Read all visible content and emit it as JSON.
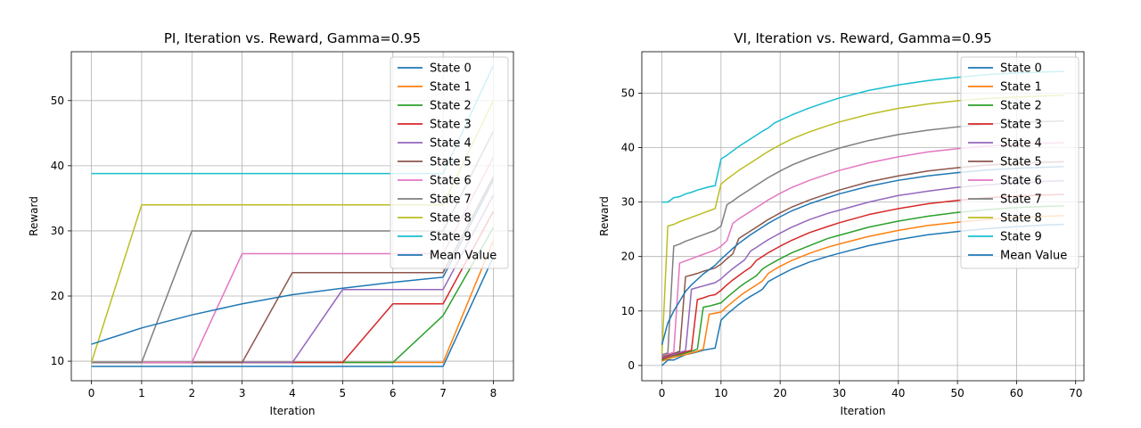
{
  "colors": {
    "State 0": "#1f77b4",
    "State 1": "#ff7f0e",
    "State 2": "#2ca02c",
    "State 3": "#d62728",
    "State 4": "#9467bd",
    "State 5": "#8c564b",
    "State 6": "#e377c2",
    "State 7": "#7f7f7f",
    "State 8": "#bcbd22",
    "State 9": "#17becf",
    "Mean Value": "#1f77b4"
  },
  "chart_data": [
    {
      "type": "line",
      "title": "PI, Iteration vs. Reward, Gamma=0.95",
      "xlabel": "Iteration",
      "ylabel": "Reward",
      "xlim": [
        -0.4,
        8.4
      ],
      "ylim": [
        7.0,
        57.5
      ],
      "xticks": [
        0,
        1,
        2,
        3,
        4,
        5,
        6,
        7,
        8
      ],
      "yticks": [
        10,
        20,
        30,
        40,
        50
      ],
      "grid": true,
      "legend_position": "top-right",
      "x": [
        0,
        1,
        2,
        3,
        4,
        5,
        6,
        7,
        8
      ],
      "series": [
        {
          "name": "State 0",
          "values": [
            9.2,
            9.2,
            9.2,
            9.2,
            9.2,
            9.2,
            9.2,
            9.2,
            26.0
          ]
        },
        {
          "name": "State 1",
          "values": [
            9.8,
            9.8,
            9.8,
            9.8,
            9.8,
            9.8,
            9.8,
            9.8,
            28.5
          ]
        },
        {
          "name": "State 2",
          "values": [
            9.8,
            9.8,
            9.8,
            9.8,
            9.8,
            9.8,
            9.8,
            17.0,
            30.5
          ]
        },
        {
          "name": "State 3",
          "values": [
            9.8,
            9.8,
            9.8,
            9.8,
            9.8,
            9.8,
            18.8,
            18.8,
            33.0
          ]
        },
        {
          "name": "State 4",
          "values": [
            9.8,
            9.8,
            9.8,
            9.8,
            9.8,
            21.0,
            21.0,
            21.0,
            35.5
          ]
        },
        {
          "name": "State 5",
          "values": [
            9.8,
            9.8,
            9.8,
            9.8,
            23.6,
            23.6,
            23.6,
            23.6,
            38.3
          ]
        },
        {
          "name": "State 6",
          "values": [
            9.8,
            9.8,
            9.8,
            26.5,
            26.5,
            26.5,
            26.5,
            26.5,
            41.3
          ]
        },
        {
          "name": "State 7",
          "values": [
            9.8,
            9.8,
            30.0,
            30.0,
            30.0,
            30.0,
            30.0,
            30.0,
            45.3
          ]
        },
        {
          "name": "State 8",
          "values": [
            9.8,
            34.0,
            34.0,
            34.0,
            34.0,
            34.0,
            34.0,
            34.0,
            50.0
          ]
        },
        {
          "name": "State 9",
          "values": [
            38.8,
            38.8,
            38.8,
            38.8,
            38.8,
            38.8,
            38.8,
            38.8,
            55.4
          ]
        },
        {
          "name": "Mean Value",
          "values": [
            12.6,
            15.1,
            17.1,
            18.8,
            20.2,
            21.2,
            22.1,
            22.9,
            37.8
          ]
        }
      ]
    },
    {
      "type": "line",
      "title": "VI, Iteration vs. Reward, Gamma=0.95",
      "xlabel": "Iteration",
      "ylabel": "Reward",
      "xlim": [
        -3.4,
        71.4
      ],
      "ylim": [
        -2.8,
        57.6
      ],
      "xticks": [
        0,
        10,
        20,
        30,
        40,
        50,
        60,
        70
      ],
      "yticks": [
        0,
        10,
        20,
        30,
        40,
        50
      ],
      "grid": true,
      "legend_position": "top-right",
      "x": [
        0,
        1,
        2,
        3,
        4,
        5,
        6,
        7,
        8,
        9,
        10,
        11,
        12,
        13,
        14,
        15,
        16,
        17,
        18,
        19,
        20,
        22,
        25,
        28,
        30,
        35,
        40,
        45,
        50,
        55,
        60,
        65,
        68
      ],
      "series": [
        {
          "name": "State 0",
          "values": [
            0.0,
            1.0,
            1.0,
            1.5,
            2.0,
            2.2,
            2.5,
            2.8,
            3.0,
            3.2,
            8.3,
            9.4,
            10.3,
            11.2,
            12.0,
            12.7,
            13.3,
            14.0,
            15.4,
            16.0,
            16.6,
            17.7,
            19.0,
            20.0,
            20.6,
            22.0,
            23.1,
            24.0,
            24.6,
            25.1,
            25.5,
            25.8,
            25.9
          ]
        },
        {
          "name": "State 1",
          "values": [
            0.8,
            1.2,
            1.5,
            1.8,
            2.0,
            2.3,
            2.6,
            3.0,
            9.4,
            9.6,
            9.8,
            10.8,
            11.7,
            12.6,
            13.4,
            14.1,
            14.8,
            15.5,
            16.9,
            17.6,
            18.2,
            19.3,
            20.6,
            21.7,
            22.3,
            23.7,
            24.8,
            25.7,
            26.3,
            26.8,
            27.2,
            27.4,
            27.5
          ]
        },
        {
          "name": "State 2",
          "values": [
            1.0,
            1.5,
            1.8,
            2.0,
            2.3,
            2.6,
            3.0,
            10.7,
            10.9,
            11.2,
            11.5,
            12.5,
            13.4,
            14.3,
            15.1,
            15.8,
            16.5,
            17.7,
            18.4,
            19.0,
            19.6,
            20.7,
            22.0,
            23.3,
            23.9,
            25.4,
            26.5,
            27.4,
            28.1,
            28.6,
            29.0,
            29.2,
            29.3
          ]
        },
        {
          "name": "State 3",
          "values": [
            1.2,
            1.6,
            1.9,
            2.2,
            2.5,
            2.8,
            12.1,
            12.4,
            12.8,
            13.0,
            13.8,
            14.8,
            15.7,
            16.5,
            17.3,
            18.0,
            19.3,
            20.0,
            20.7,
            21.3,
            21.9,
            23.0,
            24.4,
            25.5,
            26.2,
            27.7,
            28.8,
            29.7,
            30.3,
            30.8,
            31.1,
            31.3,
            31.4
          ]
        },
        {
          "name": "State 4",
          "values": [
            1.4,
            1.8,
            2.0,
            2.4,
            2.7,
            14.0,
            14.3,
            14.6,
            14.9,
            15.2,
            15.9,
            16.9,
            17.8,
            18.6,
            19.4,
            21.0,
            21.7,
            22.4,
            23.1,
            23.7,
            24.3,
            25.4,
            26.8,
            27.9,
            28.5,
            30.0,
            31.2,
            32.0,
            32.7,
            33.2,
            33.5,
            33.8,
            33.9
          ]
        },
        {
          "name": "State 5",
          "values": [
            1.6,
            1.9,
            2.2,
            2.6,
            16.3,
            16.6,
            16.9,
            17.3,
            17.6,
            17.9,
            18.6,
            19.6,
            20.5,
            23.3,
            24.0,
            24.7,
            25.4,
            26.1,
            26.8,
            27.4,
            28.0,
            29.1,
            30.4,
            31.5,
            32.2,
            33.7,
            34.8,
            35.7,
            36.3,
            36.8,
            37.1,
            37.3,
            37.4
          ]
        },
        {
          "name": "State 6",
          "values": [
            1.8,
            2.1,
            2.4,
            18.8,
            19.2,
            19.6,
            20.0,
            20.4,
            20.8,
            21.2,
            21.9,
            22.9,
            26.1,
            26.9,
            27.6,
            28.3,
            29.0,
            29.7,
            30.4,
            31.0,
            31.6,
            32.7,
            34.0,
            35.1,
            35.8,
            37.2,
            38.3,
            39.2,
            39.8,
            40.3,
            40.6,
            40.8,
            40.9
          ]
        },
        {
          "name": "State 7",
          "values": [
            2.0,
            2.3,
            21.9,
            22.3,
            22.8,
            23.2,
            23.6,
            24.0,
            24.4,
            24.8,
            25.6,
            29.5,
            30.2,
            31.0,
            31.7,
            32.4,
            33.1,
            33.8,
            34.5,
            35.1,
            35.7,
            36.8,
            38.1,
            39.2,
            39.9,
            41.3,
            42.4,
            43.2,
            43.8,
            44.3,
            44.6,
            44.8,
            44.9
          ]
        },
        {
          "name": "State 8",
          "values": [
            2.2,
            25.6,
            25.9,
            26.4,
            26.8,
            27.2,
            27.6,
            28.0,
            28.4,
            28.8,
            33.3,
            34.2,
            35.0,
            35.8,
            36.5,
            37.2,
            37.9,
            38.6,
            39.3,
            39.9,
            40.5,
            41.6,
            42.9,
            44.0,
            44.7,
            46.1,
            47.2,
            48.0,
            48.6,
            49.0,
            49.3,
            49.5,
            49.6
          ]
        },
        {
          "name": "State 9",
          "values": [
            30.0,
            30.0,
            30.8,
            31.0,
            31.5,
            31.8,
            32.2,
            32.5,
            32.8,
            33.0,
            37.9,
            38.6,
            39.4,
            40.2,
            40.9,
            41.6,
            42.3,
            43.0,
            43.6,
            44.5,
            45.0,
            46.0,
            47.3,
            48.4,
            49.1,
            50.5,
            51.5,
            52.3,
            52.9,
            53.4,
            53.7,
            53.9,
            54.0
          ]
        },
        {
          "name": "Mean Value",
          "values": [
            3.8,
            7.8,
            10.0,
            11.8,
            13.6,
            14.8,
            15.8,
            16.8,
            17.6,
            18.4,
            19.5,
            20.5,
            21.5,
            22.4,
            23.2,
            24.0,
            24.7,
            25.4,
            26.1,
            26.7,
            27.3,
            28.4,
            29.7,
            30.8,
            31.5,
            32.9,
            34.0,
            34.8,
            35.4,
            35.9,
            36.2,
            36.4,
            36.5
          ]
        }
      ]
    }
  ]
}
